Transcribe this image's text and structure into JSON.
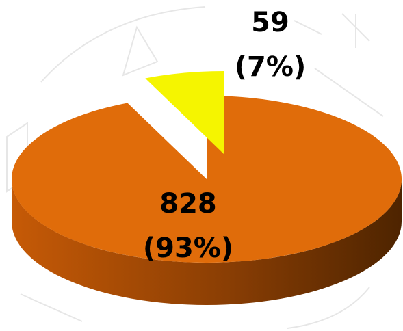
{
  "chart_data": {
    "type": "pie3d",
    "values": [
      828,
      59
    ],
    "percent_labels": [
      "(93%)",
      "(7%)"
    ],
    "colors": [
      "#e06c0a",
      "#f5f500"
    ]
  }
}
